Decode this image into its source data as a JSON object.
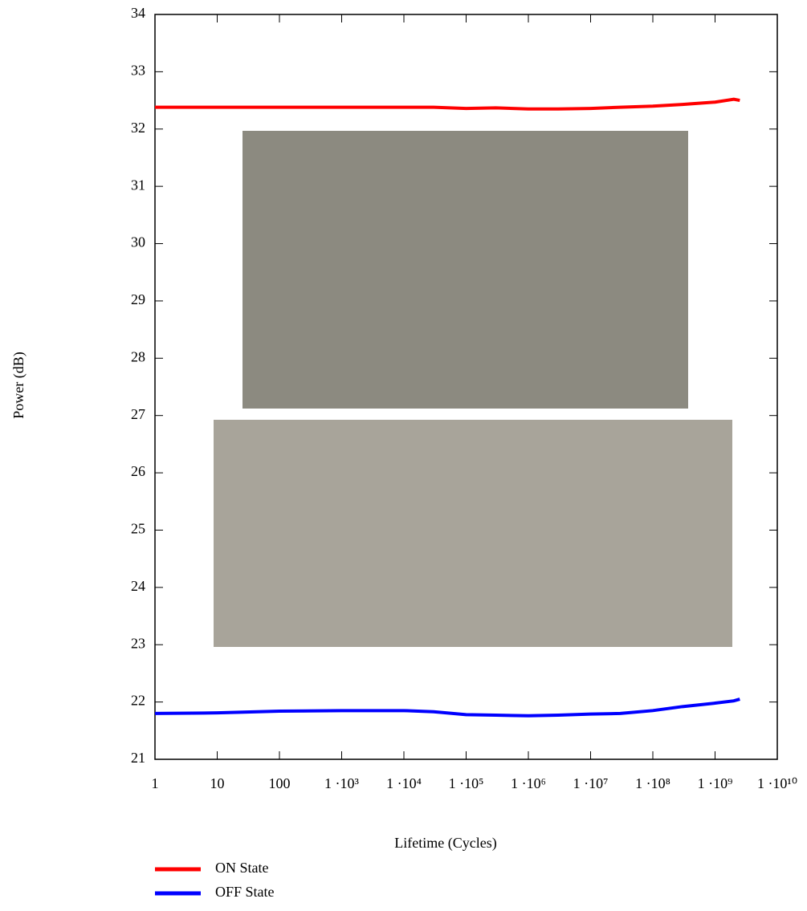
{
  "chart_data": {
    "type": "line",
    "xlabel": "Lifetime (Cycles)",
    "ylabel": "Power (dB)",
    "xscale": "log",
    "x": [
      1,
      10,
      100,
      1000,
      10000,
      30000,
      100000,
      300000,
      1000000,
      3000000,
      10000000,
      30000000,
      100000000,
      300000000,
      1000000000,
      2000000000,
      2500000000
    ],
    "series": [
      {
        "name": "ON State",
        "color": "#ff0000",
        "values": [
          32.38,
          32.38,
          32.38,
          32.38,
          32.38,
          32.38,
          32.36,
          32.37,
          32.35,
          32.35,
          32.36,
          32.38,
          32.4,
          32.43,
          32.47,
          32.52,
          32.5
        ]
      },
      {
        "name": "OFF State",
        "color": "#0000ff",
        "values": [
          21.8,
          21.81,
          21.84,
          21.85,
          21.85,
          21.83,
          21.78,
          21.77,
          21.76,
          21.77,
          21.79,
          21.8,
          21.85,
          21.92,
          21.98,
          22.02,
          22.05
        ]
      }
    ],
    "xlim": [
      1,
      10000000000
    ],
    "xticks": [
      1,
      10,
      100,
      {
        "value": 1000,
        "label": "1 ·10³"
      },
      {
        "value": 10000,
        "label": "1 ·10⁴"
      },
      {
        "value": 100000,
        "label": "1 ·10⁵"
      },
      {
        "value": 1000000,
        "label": "1 ·10⁶"
      },
      {
        "value": 10000000,
        "label": "1 ·10⁷"
      },
      {
        "value": 100000000,
        "label": "1 ·10⁸"
      },
      {
        "value": 1000000000,
        "label": "1 ·10⁹"
      },
      {
        "value": 10000000000,
        "label": "1 ·10¹⁰"
      }
    ],
    "ylim": [
      21,
      34
    ],
    "yticks": [
      21,
      22,
      23,
      24,
      25,
      26,
      27,
      28,
      29,
      30,
      31,
      32,
      33,
      34
    ],
    "grid": false
  }
}
